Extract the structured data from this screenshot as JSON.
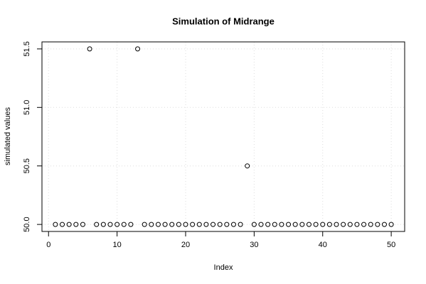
{
  "chart_data": {
    "type": "scatter",
    "title": "Simulation of Midrange",
    "x_label": "Index",
    "y_label": "simulated values",
    "x": [
      1,
      2,
      3,
      4,
      5,
      6,
      7,
      8,
      9,
      10,
      11,
      12,
      13,
      14,
      15,
      16,
      17,
      18,
      19,
      20,
      21,
      22,
      23,
      24,
      25,
      26,
      27,
      28,
      29,
      30,
      31,
      32,
      33,
      34,
      35,
      36,
      37,
      38,
      39,
      40,
      41,
      42,
      43,
      44,
      45,
      46,
      47,
      48,
      49,
      50
    ],
    "values": [
      50,
      50,
      50,
      50,
      50,
      51.5,
      50,
      50,
      50,
      50,
      50,
      50,
      51.5,
      50,
      50,
      50,
      50,
      50,
      50,
      50,
      50,
      50,
      50,
      50,
      50,
      50,
      50,
      50,
      50.5,
      50,
      50,
      50,
      50,
      50,
      50,
      50,
      50,
      50,
      50,
      50,
      50,
      50,
      50,
      50,
      50,
      50,
      50,
      50,
      50,
      50
    ],
    "xlim": [
      -0.96,
      51.96
    ],
    "ylim": [
      49.94,
      51.56
    ],
    "xticks": [
      0,
      10,
      20,
      30,
      40,
      50
    ],
    "yticks": [
      {
        "value": 50,
        "label": "50.0"
      },
      50.5,
      {
        "value": 51,
        "label": "51.0"
      },
      51.5
    ],
    "grid": true,
    "color": "#000000"
  }
}
